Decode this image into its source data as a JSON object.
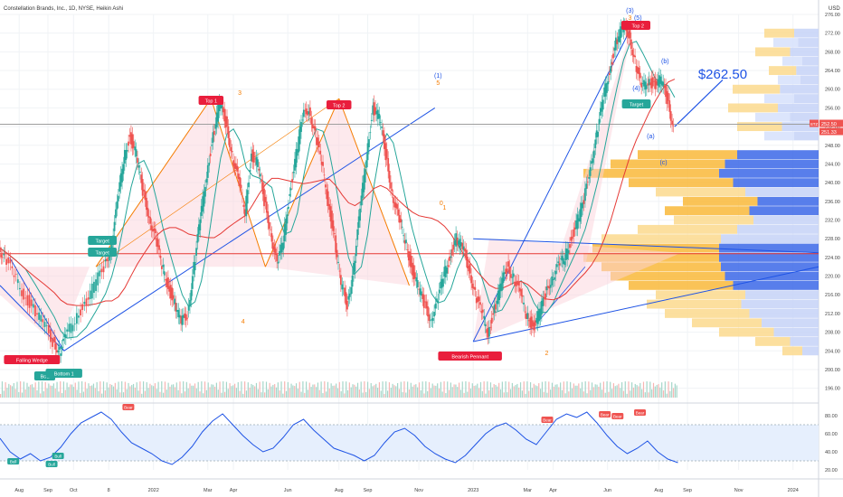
{
  "header": {
    "title": "Constellation Brands, Inc., 1D, NYSE, Heikin Ashi",
    "currency": "USD"
  },
  "chart_data": {
    "type": "candlestick",
    "title": "Constellation Brands, Inc., 1D, NYSE, Heikin Ashi",
    "price_axis": {
      "ylim": [
        194,
        276
      ],
      "ticks": [
        "276.00",
        "272.00",
        "268.00",
        "264.00",
        "260.00",
        "256.00",
        "252.00",
        "248.00",
        "244.00",
        "240.00",
        "236.00",
        "232.00",
        "228.00",
        "224.00",
        "220.00",
        "216.00",
        "212.00",
        "208.00",
        "204.00",
        "200.00",
        "196.00"
      ],
      "last_price_label": "252.50",
      "last_price_label_2": "251.33",
      "last_price_tag": "STZ"
    },
    "time_axis": {
      "ticks": [
        "Aug",
        "Sep",
        "Oct",
        "8",
        "2022",
        "Mar",
        "Apr",
        "Jun",
        "Aug",
        "Sep",
        "Nov",
        "2023",
        "Mar",
        "Apr",
        "Jun",
        "Aug",
        "Sep",
        "Nov",
        "2024"
      ],
      "tick_positions": [
        2021.58,
        2021.67,
        2021.75,
        2021.86,
        2022.0,
        2022.17,
        2022.25,
        2022.42,
        2022.58,
        2022.67,
        2022.83,
        2023.0,
        2023.17,
        2023.25,
        2023.42,
        2023.58,
        2023.67,
        2023.83,
        2024.0
      ]
    },
    "price_series": [
      [
        2021.52,
        226
      ],
      [
        2021.54,
        224
      ],
      [
        2021.57,
        220
      ],
      [
        2021.6,
        216
      ],
      [
        2021.63,
        213
      ],
      [
        2021.66,
        210
      ],
      [
        2021.69,
        206
      ],
      [
        2021.71,
        204
      ],
      [
        2021.73,
        207
      ],
      [
        2021.76,
        211
      ],
      [
        2021.79,
        214
      ],
      [
        2021.82,
        218
      ],
      [
        2021.85,
        222
      ],
      [
        2021.87,
        226
      ],
      [
        2021.89,
        235
      ],
      [
        2021.91,
        245
      ],
      [
        2021.93,
        250
      ],
      [
        2021.95,
        246
      ],
      [
        2021.97,
        238
      ],
      [
        2021.99,
        233
      ],
      [
        2022.01,
        228
      ],
      [
        2022.03,
        222
      ],
      [
        2022.05,
        218
      ],
      [
        2022.07,
        214
      ],
      [
        2022.09,
        210
      ],
      [
        2022.11,
        212
      ],
      [
        2022.13,
        222
      ],
      [
        2022.15,
        232
      ],
      [
        2022.17,
        242
      ],
      [
        2022.19,
        250
      ],
      [
        2022.21,
        257
      ],
      [
        2022.23,
        253
      ],
      [
        2022.25,
        246
      ],
      [
        2022.27,
        240
      ],
      [
        2022.29,
        234
      ],
      [
        2022.31,
        246
      ],
      [
        2022.33,
        244
      ],
      [
        2022.35,
        236
      ],
      [
        2022.37,
        230
      ],
      [
        2022.39,
        222
      ],
      [
        2022.41,
        228
      ],
      [
        2022.43,
        238
      ],
      [
        2022.45,
        246
      ],
      [
        2022.47,
        254
      ],
      [
        2022.49,
        256
      ],
      [
        2022.51,
        250
      ],
      [
        2022.53,
        244
      ],
      [
        2022.55,
        236
      ],
      [
        2022.57,
        228
      ],
      [
        2022.59,
        218
      ],
      [
        2022.61,
        214
      ],
      [
        2022.63,
        222
      ],
      [
        2022.65,
        234
      ],
      [
        2022.67,
        246
      ],
      [
        2022.69,
        256
      ],
      [
        2022.71,
        254
      ],
      [
        2022.73,
        246
      ],
      [
        2022.75,
        238
      ],
      [
        2022.77,
        232
      ],
      [
        2022.79,
        228
      ],
      [
        2022.81,
        222
      ],
      [
        2022.83,
        218
      ],
      [
        2022.85,
        214
      ],
      [
        2022.87,
        211
      ],
      [
        2022.89,
        214
      ],
      [
        2022.91,
        220
      ],
      [
        2022.93,
        224
      ],
      [
        2022.95,
        228
      ],
      [
        2022.97,
        226
      ],
      [
        2022.99,
        222
      ],
      [
        2023.01,
        216
      ],
      [
        2023.03,
        212
      ],
      [
        2023.05,
        208
      ],
      [
        2023.07,
        213
      ],
      [
        2023.09,
        218
      ],
      [
        2023.11,
        222
      ],
      [
        2023.13,
        220
      ],
      [
        2023.15,
        216
      ],
      [
        2023.17,
        212
      ],
      [
        2023.19,
        209
      ],
      [
        2023.21,
        212
      ],
      [
        2023.23,
        216
      ],
      [
        2023.25,
        220
      ],
      [
        2023.27,
        222
      ],
      [
        2023.29,
        224
      ],
      [
        2023.31,
        228
      ],
      [
        2023.33,
        232
      ],
      [
        2023.35,
        236
      ],
      [
        2023.37,
        244
      ],
      [
        2023.39,
        250
      ],
      [
        2023.41,
        258
      ],
      [
        2023.43,
        264
      ],
      [
        2023.45,
        270
      ],
      [
        2023.47,
        273
      ],
      [
        2023.49,
        272
      ],
      [
        2023.51,
        266
      ],
      [
        2023.53,
        260
      ],
      [
        2023.55,
        262
      ],
      [
        2023.57,
        261
      ],
      [
        2023.59,
        262
      ],
      [
        2023.61,
        258
      ],
      [
        2023.63,
        252
      ]
    ],
    "horizontal_lines": [
      {
        "price": 224.8,
        "color": "#e53935"
      },
      {
        "price": 252.5,
        "color": "#9e9e9e"
      }
    ],
    "annotations": [
      {
        "text": "(1)",
        "color": "#1e53e5"
      },
      {
        "text": "5",
        "color": "#f57c00"
      },
      {
        "text": "(3)",
        "color": "#1e53e5"
      },
      {
        "text": "3",
        "color": "#f57c00"
      },
      {
        "text": "(5)",
        "color": "#1e53e5"
      },
      {
        "text": "(4)",
        "color": "#1e53e5"
      },
      {
        "text": "(a)",
        "color": "#1e53e5"
      },
      {
        "text": "(b)",
        "color": "#1e53e5"
      },
      {
        "text": "(c)",
        "color": "#1e53e5"
      },
      {
        "text": "$262.50",
        "color": "#1e53e5"
      },
      {
        "text": "3",
        "color": "#f57c00"
      },
      {
        "text": "4",
        "color": "#f57c00"
      },
      {
        "text": "1",
        "color": "#f57c00"
      },
      {
        "text": "2",
        "color": "#f57c00"
      },
      {
        "text": "0",
        "color": "#f57c00"
      }
    ],
    "tags": [
      {
        "text": "Top 1",
        "color": "#e91e3c"
      },
      {
        "text": "Top 2",
        "color": "#e91e3c"
      },
      {
        "text": "Top",
        "color": "#e91e3c"
      },
      {
        "text": "Top 2",
        "color": "#e91e3c"
      },
      {
        "text": "Target",
        "color": "#26a69a"
      },
      {
        "text": "Target",
        "color": "#26a69a"
      },
      {
        "text": "Target",
        "color": "#26a69a"
      },
      {
        "text": "Falling Wedge",
        "color": "#e91e3c"
      },
      {
        "text": "Bott",
        "color": "#26a69a"
      },
      {
        "text": "Bottom 1",
        "color": "#26a69a"
      },
      {
        "text": "Bearish Pennant",
        "color": "#e91e3c"
      }
    ],
    "rsi": {
      "ylim": [
        20,
        90
      ],
      "ticks": [
        "80.00",
        "60.00",
        "40.00",
        "20.00"
      ],
      "values": [
        55,
        40,
        32,
        38,
        30,
        34,
        45,
        60,
        72,
        78,
        84,
        76,
        62,
        50,
        44,
        38,
        30,
        26,
        34,
        46,
        62,
        74,
        82,
        70,
        58,
        48,
        40,
        44,
        56,
        70,
        76,
        64,
        54,
        44,
        40,
        36,
        30,
        36,
        50,
        62,
        66,
        58,
        46,
        38,
        32,
        28,
        36,
        48,
        60,
        68,
        72,
        64,
        54,
        48,
        62,
        76,
        82,
        78,
        84,
        72,
        58,
        46,
        38,
        44,
        52,
        40,
        32,
        28
      ],
      "signals": [
        "Bull",
        "Bull",
        "Bull",
        "Bear",
        "Bear",
        "Bear",
        "Bear",
        "Bear"
      ]
    }
  }
}
